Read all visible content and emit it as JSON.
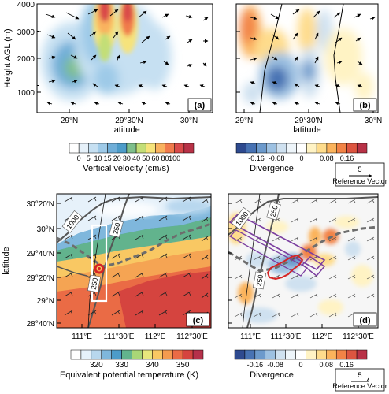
{
  "chart_data": [
    {
      "panel": "(a)",
      "type": "heatmap",
      "xlabel": "latitude",
      "ylabel": "Height AGL (m)",
      "x_ticks": [
        "29°N",
        "29°30'N",
        "30°N"
      ],
      "y_ticks": [
        "1000",
        "2000",
        "3000",
        "4000"
      ],
      "ylim": [
        0,
        4000
      ],
      "colorbar": {
        "label": "Vertical velocity (cm/s)",
        "ticks": [
          "0",
          "5",
          "10",
          "15",
          "20",
          "30",
          "40",
          "50",
          "60",
          "80",
          "100"
        ],
        "colors": [
          "#ffffff",
          "#e6f1fa",
          "#c6e0f2",
          "#9ecae8",
          "#6faed8",
          "#4d9cc9",
          "#7fbf8b",
          "#c3de77",
          "#f6e37b",
          "#f9b25f",
          "#f07a4c",
          "#d94a4a",
          "#b83247"
        ]
      },
      "blobs": [
        {
          "lat": 29.08,
          "z": 1900,
          "value": 35
        },
        {
          "lat": 29.2,
          "z": 3000,
          "value": 20
        },
        {
          "lat": 29.33,
          "z": 3700,
          "value": 90
        },
        {
          "lat": 29.46,
          "z": 3500,
          "value": 80
        },
        {
          "lat": 29.6,
          "z": 2000,
          "value": 10
        }
      ]
    },
    {
      "panel": "(b)",
      "type": "heatmap",
      "xlabel": "latitude",
      "x_ticks": [
        "29°N",
        "29°30'N",
        "30°N"
      ],
      "colorbar": {
        "label": "Divergence",
        "ticks": [
          "-0.16",
          "-0.08",
          "0",
          "0.08",
          "0.16"
        ],
        "colors": [
          "#2e4a8f",
          "#4772b3",
          "#6c9acc",
          "#9dc1e2",
          "#cfe1f0",
          "#eef5fa",
          "#ffffff",
          "#fff3c4",
          "#fedc8c",
          "#fbb35c",
          "#f28346",
          "#dd5540",
          "#b83247"
        ]
      },
      "reference_vector": {
        "value": "5",
        "label": "Reference Vector"
      }
    },
    {
      "panel": "(c)",
      "type": "heatmap",
      "ylabel": "latitude",
      "x_ticks": [
        "111°E",
        "111°30'E",
        "112°E",
        "112°30'E"
      ],
      "y_ticks": [
        "28°40'N",
        "29°N",
        "29°20'N",
        "29°40'N",
        "30°N",
        "30°20'N"
      ],
      "contour_labels": [
        "1000",
        "250",
        "250"
      ],
      "colorbar": {
        "label": "Equivalent potential temperature (K)",
        "ticks": [
          "320",
          "330",
          "340",
          "350"
        ],
        "colors": [
          "#ffffff",
          "#e6f1fa",
          "#b8d7ee",
          "#7fb7dc",
          "#4d9cc9",
          "#62b38d",
          "#a9d677",
          "#e9e77c",
          "#f9c863",
          "#f49b4f",
          "#ea6b45",
          "#d5443f",
          "#b5314a"
        ]
      }
    },
    {
      "panel": "(d)",
      "type": "heatmap",
      "x_ticks": [
        "111°E",
        "111°30'E",
        "112°E",
        "112°30'E"
      ],
      "contour_labels": [
        "1000",
        "250",
        "250"
      ],
      "colorbar": {
        "label": "Divergence",
        "ticks": [
          "-0.16",
          "-0.08",
          "0",
          "0.08",
          "0.16"
        ],
        "colors": [
          "#2e4a8f",
          "#4772b3",
          "#6c9acc",
          "#9dc1e2",
          "#cfe1f0",
          "#eef5fa",
          "#ffffff",
          "#fff3c4",
          "#fedc8c",
          "#fbb35c",
          "#f28346",
          "#dd5540",
          "#b83247"
        ]
      },
      "reference_vector": {
        "value": "5",
        "label": "Reference Vector"
      }
    }
  ],
  "colors": {
    "contour": "#555555",
    "front": "#6d6d6d",
    "box": "#ffffff",
    "purple": "#7b3fa0",
    "cell": "#d62424"
  }
}
